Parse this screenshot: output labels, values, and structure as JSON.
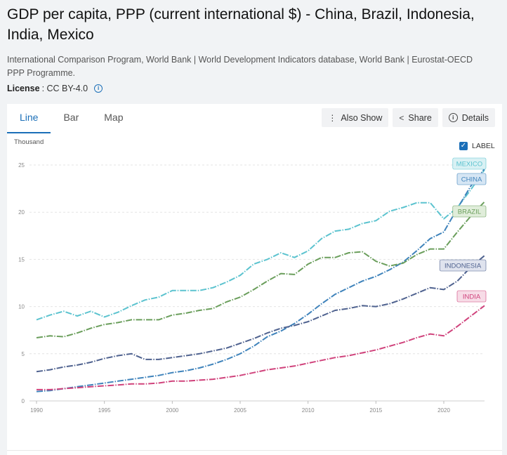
{
  "header": {
    "title": "GDP per capita, PPP (current international $) - China, Brazil, Indonesia, India, Mexico",
    "source": "International Comparison Program, World Bank | World Development Indicators database, World Bank | Eurostat-OECD PPP Programme.",
    "license_label": "License",
    "license_value": " : CC BY-4.0"
  },
  "tabs": [
    "Line",
    "Bar",
    "Map"
  ],
  "toolbar": {
    "also_show": "Also Show",
    "share": "Share",
    "details": "Details"
  },
  "label_toggle": "LABEL",
  "chart_data": {
    "type": "line",
    "ylabel": "Thousand",
    "ylim": [
      0,
      25
    ],
    "xlim": [
      1990,
      2023
    ],
    "x_ticks": [
      1990,
      1995,
      2000,
      2005,
      2010,
      2015,
      2020
    ],
    "y_ticks": [
      0,
      5,
      10,
      15,
      20,
      25
    ],
    "grid": true,
    "x": [
      1990,
      1991,
      1992,
      1993,
      1994,
      1995,
      1996,
      1997,
      1998,
      1999,
      2000,
      2001,
      2002,
      2003,
      2004,
      2005,
      2006,
      2007,
      2008,
      2009,
      2010,
      2011,
      2012,
      2013,
      2014,
      2015,
      2016,
      2017,
      2018,
      2019,
      2020,
      2021,
      2022,
      2023
    ],
    "series": [
      {
        "name": "MEXICO",
        "color": "#5cc3cf",
        "label_bg": "#d9f1f4",
        "values": [
          8.6,
          9.1,
          9.5,
          9.0,
          9.5,
          8.9,
          9.4,
          10.1,
          10.7,
          11.0,
          11.7,
          11.7,
          11.7,
          12.0,
          12.6,
          13.3,
          14.5,
          15.0,
          15.7,
          15.2,
          15.9,
          17.2,
          18.0,
          18.2,
          18.8,
          19.1,
          20.1,
          20.5,
          21.0,
          21.0,
          19.3,
          20.5,
          22.4,
          24.5
        ]
      },
      {
        "name": "CHINA",
        "color": "#3f83bb",
        "label_bg": "#d6e6f4",
        "values": [
          1.0,
          1.1,
          1.3,
          1.5,
          1.7,
          1.9,
          2.1,
          2.3,
          2.5,
          2.7,
          3.0,
          3.2,
          3.5,
          3.9,
          4.4,
          5.0,
          5.8,
          6.8,
          7.4,
          8.2,
          9.2,
          10.3,
          11.3,
          12.0,
          12.7,
          13.2,
          13.9,
          14.7,
          15.9,
          17.2,
          17.9,
          20.4,
          22.8,
          24.6
        ]
      },
      {
        "name": "BRAZIL",
        "color": "#6a9e5b",
        "label_bg": "#e0edda",
        "values": [
          6.7,
          6.9,
          6.8,
          7.2,
          7.7,
          8.1,
          8.3,
          8.6,
          8.6,
          8.6,
          9.1,
          9.3,
          9.6,
          9.8,
          10.5,
          11.0,
          11.8,
          12.7,
          13.5,
          13.4,
          14.5,
          15.2,
          15.2,
          15.7,
          15.8,
          14.8,
          14.3,
          14.6,
          15.5,
          16.1,
          16.1,
          17.9,
          19.6,
          21.1
        ]
      },
      {
        "name": "INDONESIA",
        "color": "#4f628f",
        "label_bg": "#dfe3ee",
        "values": [
          3.1,
          3.3,
          3.6,
          3.8,
          4.1,
          4.5,
          4.8,
          5.0,
          4.4,
          4.4,
          4.6,
          4.8,
          5.0,
          5.3,
          5.6,
          6.1,
          6.6,
          7.2,
          7.7,
          8.0,
          8.4,
          9.0,
          9.6,
          9.8,
          10.1,
          10.0,
          10.3,
          10.8,
          11.4,
          12.0,
          11.8,
          12.7,
          14.2,
          15.4
        ]
      },
      {
        "name": "INDIA",
        "color": "#d0437c",
        "label_bg": "#f7dce7",
        "values": [
          1.2,
          1.2,
          1.3,
          1.4,
          1.5,
          1.6,
          1.7,
          1.8,
          1.8,
          1.9,
          2.1,
          2.1,
          2.2,
          2.3,
          2.5,
          2.7,
          3.0,
          3.3,
          3.5,
          3.7,
          4.0,
          4.3,
          4.6,
          4.8,
          5.1,
          5.4,
          5.8,
          6.2,
          6.7,
          7.1,
          6.9,
          7.9,
          9.0,
          10.1
        ]
      }
    ]
  }
}
